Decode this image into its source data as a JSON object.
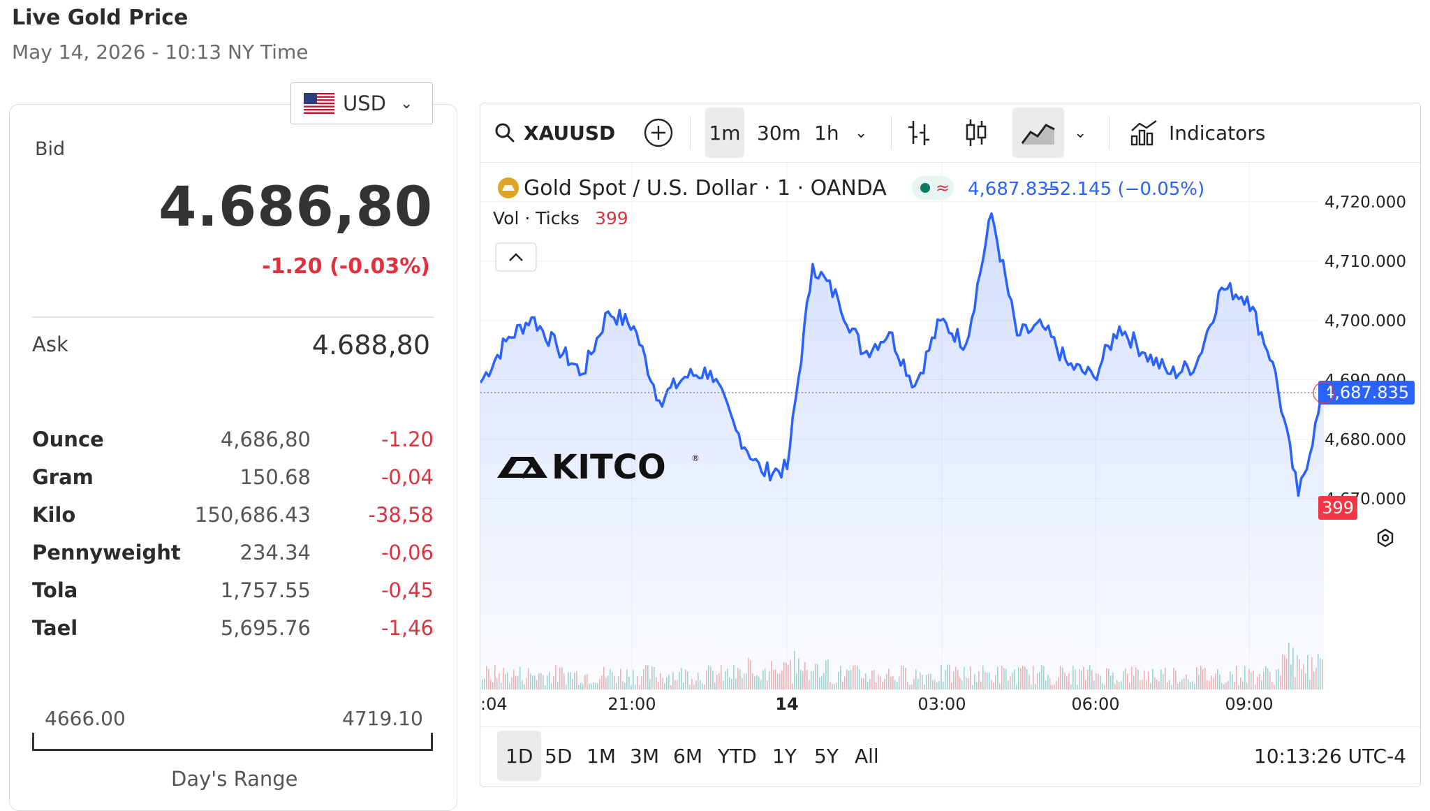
{
  "header": {
    "title": "Live Gold Price",
    "datetime": "May 14, 2026 - 10:13 NY Time"
  },
  "currency": {
    "code": "USD",
    "flag_icon": "us-flag-icon"
  },
  "quote": {
    "bid_label": "Bid",
    "bid": "4.686,80",
    "bid_change": "-1.20 (-0.03%)",
    "ask_label": "Ask",
    "ask": "4.688,80"
  },
  "units": [
    {
      "name": "Ounce",
      "value": "4,686,80",
      "change": "-1.20"
    },
    {
      "name": "Gram",
      "value": "150.68",
      "change": "-0,04"
    },
    {
      "name": "Kilo",
      "value": "150,686.43",
      "change": "-38,58"
    },
    {
      "name": "Pennyweight",
      "value": "234.34",
      "change": "-0,06"
    },
    {
      "name": "Tola",
      "value": "1,757.55",
      "change": "-0,45"
    },
    {
      "name": "Tael",
      "value": "5,695.76",
      "change": "-1,46"
    }
  ],
  "days_range": {
    "low": "4666.00",
    "high": "4719.10",
    "label": "Day's Range"
  },
  "toolbar": {
    "symbol": "XAUUSD",
    "intervals": [
      "1m",
      "30m",
      "1h"
    ],
    "selected_interval": "1m",
    "indicators_label": "Indicators"
  },
  "legend": {
    "instrument": "Gold Spot / U.S. Dollar · 1 · OANDA",
    "last": "4,687.835",
    "change": "−2.145 (−0.05%)",
    "vol_label": "Vol · Ticks",
    "vol_value": "399"
  },
  "watermark": "KITCO",
  "colors": {
    "line": "#2962ff",
    "down": "#e0313e",
    "up": "#26a69a",
    "gold": "#e0a526"
  },
  "chart_data": {
    "type": "line",
    "title": "",
    "series": [
      {
        "name": "Gold Spot / U.S. Dollar",
        "x": [
          "18:04",
          "18:30",
          "19:00",
          "19:30",
          "20:00",
          "20:30",
          "21:00",
          "21:30",
          "22:00",
          "22:30",
          "23:00",
          "23:30",
          "00:00",
          "00:30",
          "01:00",
          "01:30",
          "02:00",
          "02:30",
          "03:00",
          "03:30",
          "04:00",
          "04:30",
          "05:00",
          "05:30",
          "06:00",
          "06:30",
          "07:00",
          "07:30",
          "08:00",
          "08:30",
          "09:00",
          "09:30",
          "10:00",
          "10:13"
        ],
        "values": [
          4689.5,
          4696.5,
          4700.5,
          4695.5,
          4691.0,
          4701.5,
          4699.0,
          4686.5,
          4690.5,
          4691.5,
          4681.5,
          4674.5,
          4675.0,
          4709.5,
          4703.5,
          4694.5,
          4698.0,
          4689.0,
          4700.0,
          4696.0,
          4718.0,
          4697.5,
          4699.0,
          4692.5,
          4690.5,
          4699.0,
          4694.5,
          4691.0,
          4692.5,
          4705.5,
          4704.0,
          4693.0,
          4670.5,
          4687.835
        ]
      }
    ],
    "xlabel": "",
    "ylabel": "",
    "x_ticks": [
      ":04",
      "21:00",
      "14",
      "03:00",
      "06:00",
      "09:00"
    ],
    "y_ticks": [
      "4,720.000",
      "4,710.000",
      "4,700.000",
      "4,690.000",
      "4,680.000",
      "4,670.000"
    ],
    "ylim": [
      4665.5,
      4725.5
    ],
    "last_price_label": "4,687.835",
    "volume_label": "399",
    "grid": true
  },
  "range_buttons": [
    "1D",
    "5D",
    "1M",
    "3M",
    "6M",
    "YTD",
    "1Y",
    "5Y",
    "All"
  ],
  "selected_range": "1D",
  "time_readout": "10:13:26 UTC-4"
}
